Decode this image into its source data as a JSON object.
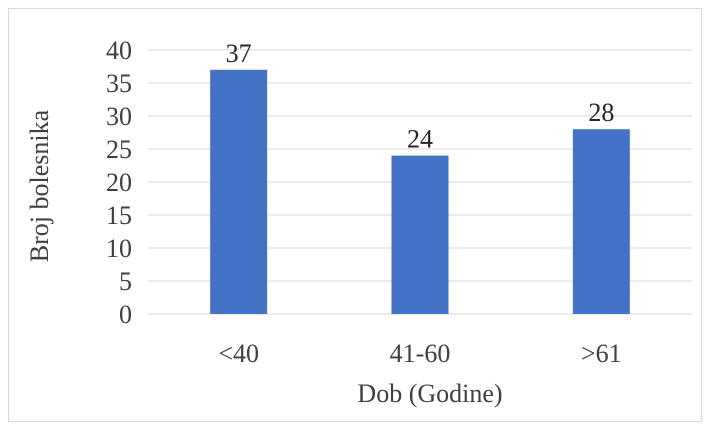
{
  "chart_data": {
    "type": "bar",
    "categories": [
      "<40",
      "41-60",
      ">61"
    ],
    "values": [
      37,
      24,
      28
    ],
    "title": "",
    "xlabel": "Dob (Godine)",
    "ylabel": "Broj bolesnika",
    "ylim": [
      0,
      40
    ],
    "yticks": [
      0,
      5,
      10,
      15,
      20,
      25,
      30,
      35,
      40
    ],
    "grid": true,
    "data_labels": true,
    "bar_color": "#4472C4",
    "gridline_color": "#d9d9d9"
  }
}
